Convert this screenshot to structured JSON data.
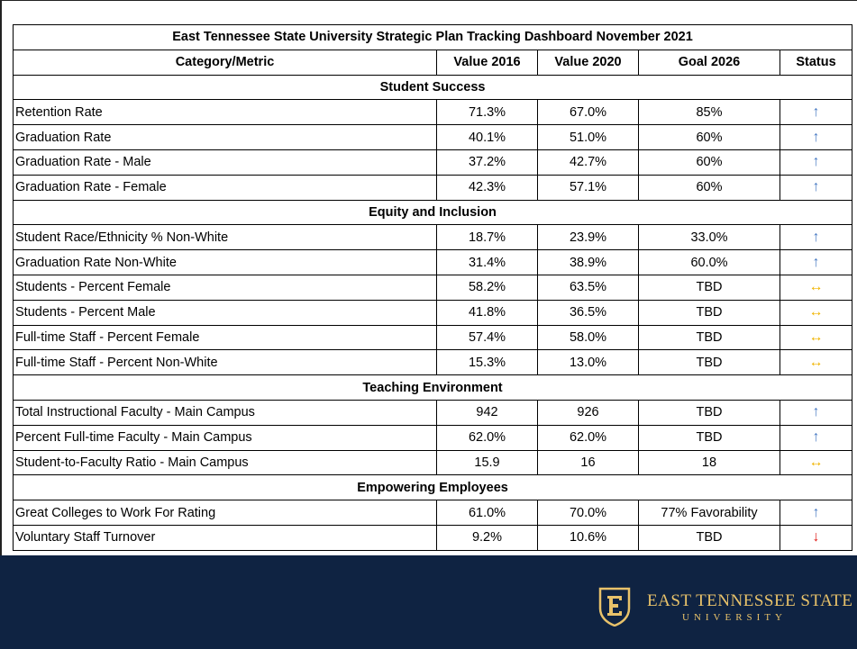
{
  "table": {
    "title": "East Tennessee State University Strategic Plan Tracking Dashboard November 2021",
    "columns": [
      "Category/Metric",
      "Value 2016",
      "Value 2020",
      "Goal 2026",
      "Status"
    ],
    "sections": [
      {
        "title": "Student Success",
        "rows": [
          [
            "Retention Rate",
            "71.3%",
            "67.0%",
            "85%",
            {
              "text": "↑",
              "color": "#4a7cc4"
            }
          ],
          [
            "Graduation Rate",
            "40.1%",
            "51.0%",
            "60%",
            {
              "text": "↑",
              "color": "#4a7cc4"
            }
          ],
          [
            "Graduation Rate - Male",
            "37.2%",
            "42.7%",
            "60%",
            {
              "text": "↑",
              "color": "#4a7cc4"
            }
          ],
          [
            "Graduation Rate - Female",
            "42.3%",
            "57.1%",
            "60%",
            {
              "text": "↑",
              "color": "#4a7cc4"
            }
          ]
        ]
      },
      {
        "title": "Equity and Inclusion",
        "rows": [
          [
            "Student Race/Ethnicity % Non-White",
            "18.7%",
            "23.9%",
            "33.0%",
            {
              "text": "↑",
              "color": "#4a7cc4"
            }
          ],
          [
            "Graduation Rate Non-White",
            "31.4%",
            "38.9%",
            "60.0%",
            {
              "text": "↑",
              "color": "#4a7cc4"
            }
          ],
          [
            "Students - Percent Female",
            "58.2%",
            "63.5%",
            "TBD",
            {
              "text": "↔",
              "color": "#f0b400"
            }
          ],
          [
            "Students - Percent Male",
            "41.8%",
            "36.5%",
            "TBD",
            {
              "text": "↔",
              "color": "#f0b400"
            }
          ],
          [
            "Full-time Staff - Percent Female",
            "57.4%",
            "58.0%",
            "TBD",
            {
              "text": "↔",
              "color": "#f0b400"
            }
          ],
          [
            "Full-time Staff - Percent Non-White",
            "15.3%",
            "13.0%",
            "TBD",
            {
              "text": "↔",
              "color": "#f0b400"
            }
          ]
        ]
      },
      {
        "title": "Teaching Environment",
        "rows": [
          [
            "Total Instructional Faculty - Main Campus",
            "942",
            "926",
            "TBD",
            {
              "text": "↑",
              "color": "#4a7cc4"
            }
          ],
          [
            "Percent Full-time Faculty - Main Campus",
            "62.0%",
            "62.0%",
            "TBD",
            {
              "text": "↑",
              "color": "#4a7cc4"
            }
          ],
          [
            "Student-to-Faculty Ratio - Main Campus",
            "15.9",
            "16",
            "18",
            {
              "text": "↔",
              "color": "#f0b400"
            }
          ]
        ]
      },
      {
        "title": "Empowering Employees",
        "rows": [
          [
            "Great Colleges to Work For Rating",
            "61.0%",
            "70.0%",
            "77% Favorability",
            {
              "text": "↑",
              "color": "#4a7cc4"
            }
          ],
          [
            "Voluntary Staff Turnover",
            "9.2%",
            "10.6%",
            "TBD",
            {
              "text": "↓",
              "color": "#e0201b"
            }
          ]
        ]
      }
    ]
  },
  "logo": {
    "line1": "EAST TENNESSEE STATE",
    "line2": "UNIVERSITY"
  }
}
